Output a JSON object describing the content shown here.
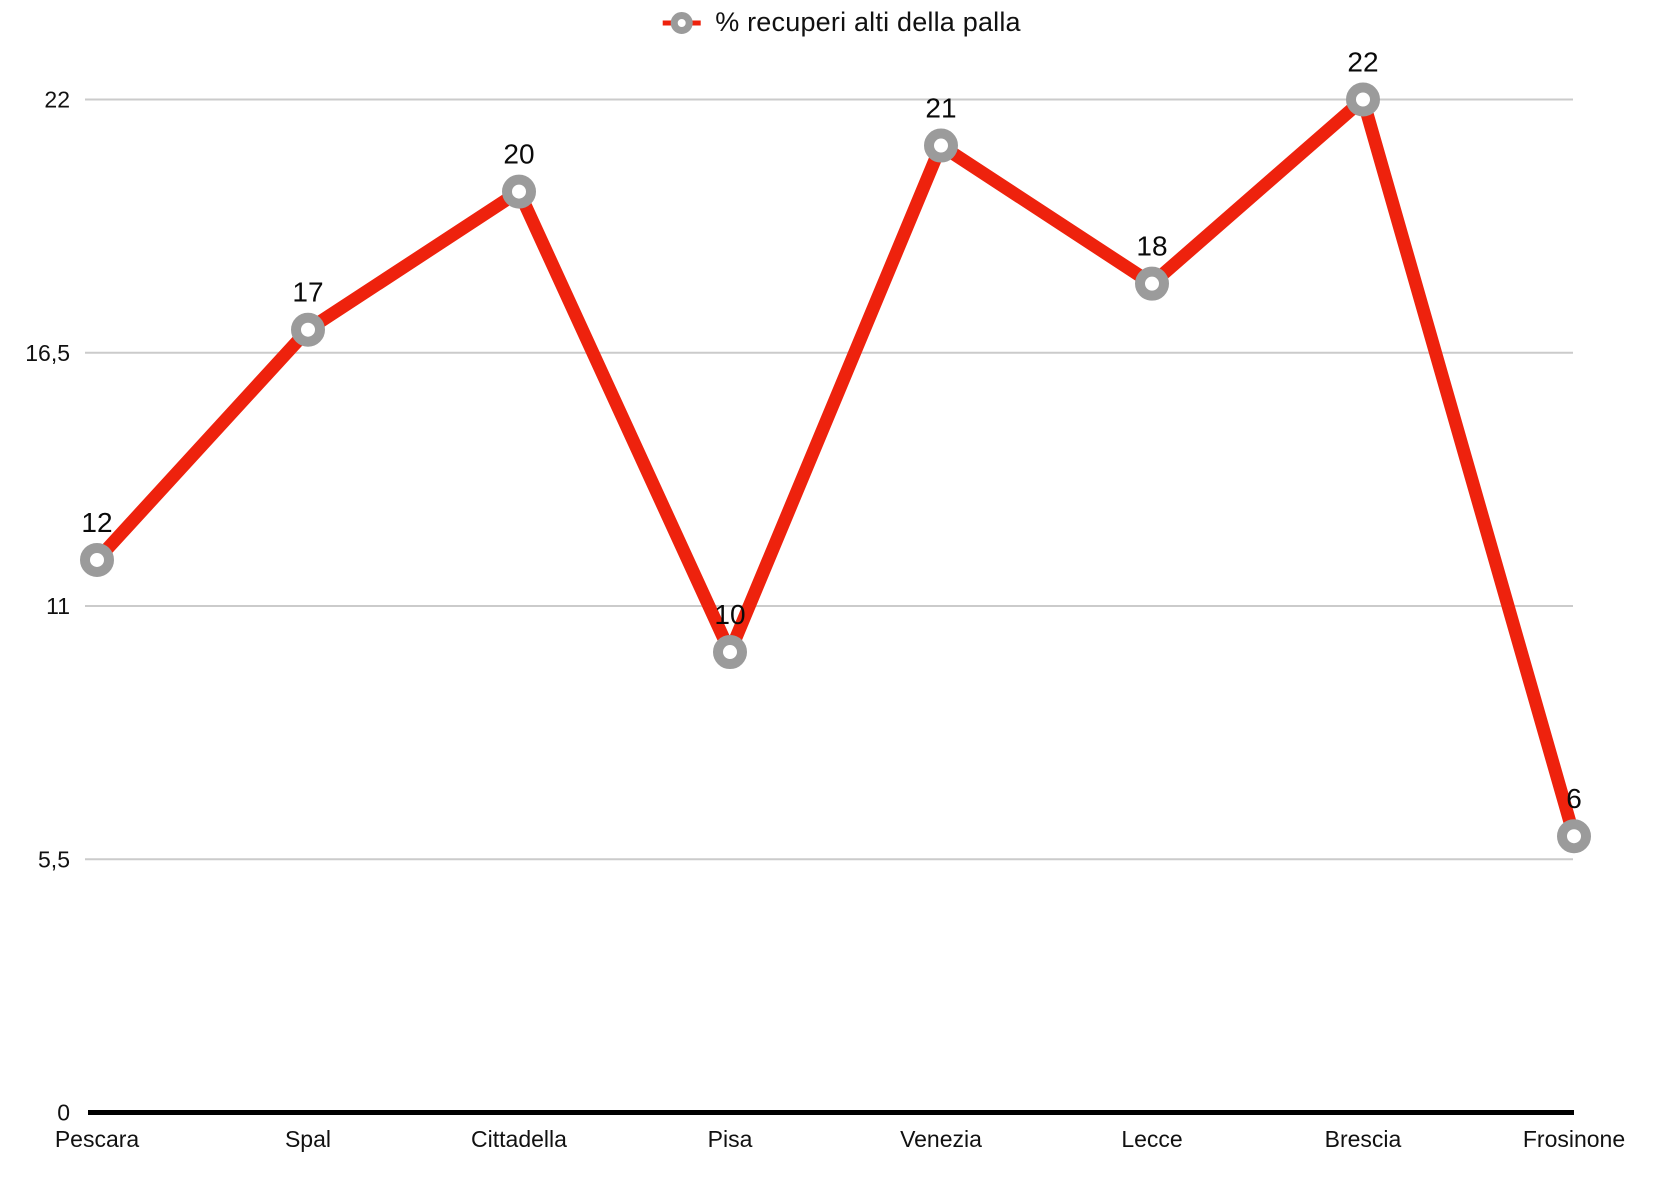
{
  "chart_data": {
    "type": "line",
    "title": "",
    "legend": "% recuperi alti della palla",
    "legend_position": "top",
    "categories": [
      "Pescara",
      "Spal",
      "Cittadella",
      "Pisa",
      "Venezia",
      "Lecce",
      "Brescia",
      "Frosinone"
    ],
    "series": [
      {
        "name": "% recuperi alti della palla",
        "values": [
          12,
          17,
          20,
          10,
          21,
          18,
          22,
          6
        ]
      }
    ],
    "data_labels": [
      "12",
      "17",
      "20",
      "10",
      "21",
      "18",
      "22",
      "6"
    ],
    "y_axis": {
      "range": [
        0,
        22
      ],
      "ticks": [
        {
          "value": 22,
          "label": "22"
        },
        {
          "value": 16.5,
          "label": "16,5"
        },
        {
          "value": 11,
          "label": "11"
        },
        {
          "value": 5.5,
          "label": "5,5"
        },
        {
          "value": 0,
          "label": "0"
        }
      ]
    },
    "grid": true,
    "colors": {
      "line": "#ee220d",
      "marker_ring": "#9b9b9b",
      "marker_fill": "#ffffff",
      "gridline": "#cbcbcb",
      "axis": "#000000",
      "text": "#111111"
    }
  }
}
